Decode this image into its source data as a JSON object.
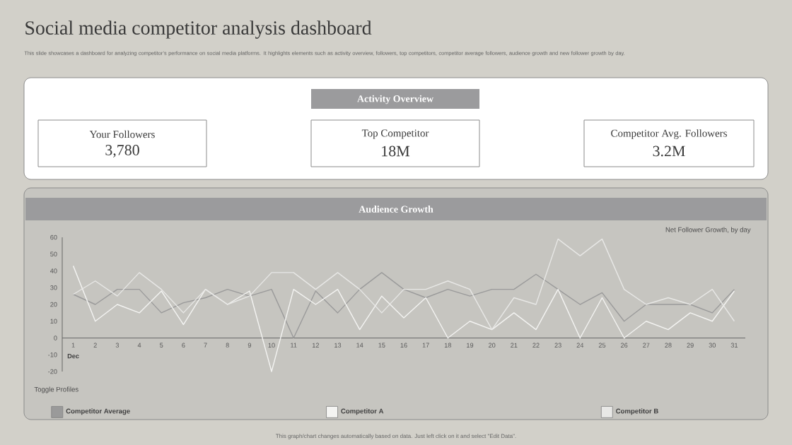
{
  "chart_data": [
    {
      "type": "other",
      "title": "Social media competitor analysis dashboard",
      "subtitle": "This slide showcases a dashboard for analyzing competitor’s performance on social media platforms. It highlights elements such as activity overview, followers, top competitors, competitor average followers, audience growth and new follower growth by day.",
      "annotations": [
        "Activity Overview",
        "Your Followers",
        "3,780",
        "Top Competitor",
        "18M",
        "Competitor Avg. Followers",
        "3.2M"
      ]
    },
    {
      "type": "line",
      "title": "Audience Growth",
      "legend_title": "Toggle Profiles",
      "legend": "bottom",
      "categories": [
        "1",
        "2",
        "3",
        "4",
        "5",
        "6",
        "7",
        "8",
        "9",
        "10",
        "11",
        "12",
        "13",
        "14",
        "15",
        "16",
        "17",
        "18",
        "19",
        "20",
        "21",
        "22",
        "23",
        "24",
        "25",
        "26",
        "27",
        "28",
        "29",
        "30",
        "31"
      ],
      "ylim": [
        -20,
        60
      ],
      "yticks": [
        -20,
        -10,
        0,
        10,
        20,
        30,
        40,
        50,
        60
      ],
      "series": [
        {
          "name": "Competitor Average",
          "color": "#9a9a9a",
          "values": [
            26,
            20,
            29,
            29,
            15,
            21,
            24,
            29,
            25,
            29,
            0,
            28,
            15,
            29,
            39,
            29,
            24,
            29,
            25,
            29,
            29,
            38,
            29,
            20,
            27,
            10,
            20,
            20,
            20,
            15,
            29
          ]
        },
        {
          "name": "Competitor A",
          "color": "#f4f4f2",
          "values": [
            43,
            10,
            20,
            15,
            28,
            8,
            29,
            20,
            28,
            -20,
            29,
            20,
            29,
            5,
            25,
            12,
            24,
            0,
            10,
            5,
            15,
            5,
            29,
            0,
            24,
            0,
            10,
            5,
            15,
            10,
            28
          ]
        },
        {
          "name": "Competitor B",
          "color": "#e8e8e6",
          "values": [
            26,
            34,
            25,
            39,
            29,
            15,
            29,
            20,
            25,
            39,
            39,
            29,
            39,
            29,
            15,
            29,
            29,
            34,
            29,
            5,
            24,
            20,
            59,
            49,
            59,
            29,
            20,
            24,
            20,
            29,
            10
          ]
        }
      ],
      "annotations": [
        "Dec",
        "Net Follower Growth, by day",
        "This graph/chart changes automatically based on data. Just left click on it and select \"Edit Data\"."
      ]
    }
  ]
}
